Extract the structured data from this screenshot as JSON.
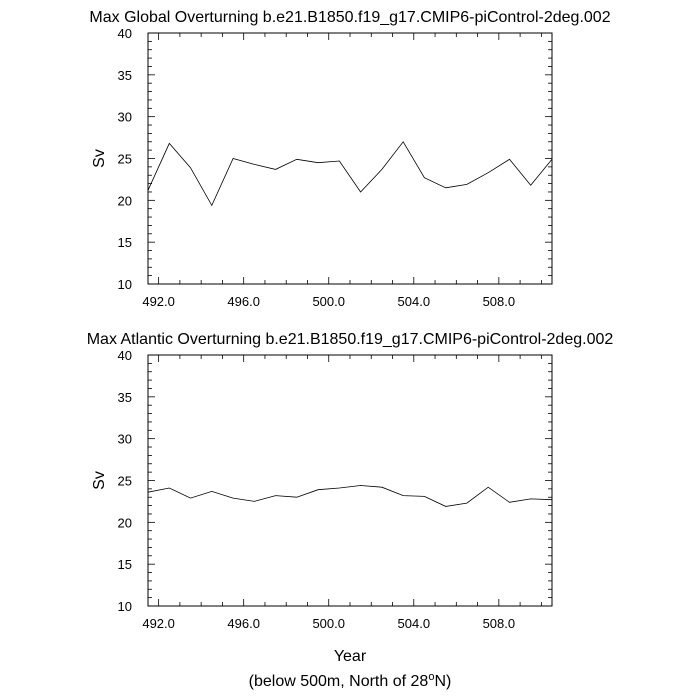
{
  "chart_data": [
    {
      "type": "line",
      "title": "Max Global Overturning b.e21.B1850.f19_g17.CMIP6-piControl-2deg.002",
      "ylabel": "Sv",
      "xlim": [
        491.5,
        510.5
      ],
      "ylim": [
        10,
        40
      ],
      "x_ticks": [
        492,
        496,
        500,
        504,
        508
      ],
      "x_tick_labels": [
        "492.0",
        "496.0",
        "500.0",
        "504.0",
        "508.0"
      ],
      "y_ticks": [
        10,
        15,
        20,
        25,
        30,
        35,
        40
      ],
      "y_tick_labels": [
        "10",
        "15",
        "20",
        "25",
        "30",
        "35",
        "40"
      ],
      "series": [
        {
          "name": "Max Global Overturning",
          "x": [
            491.5,
            492.5,
            493.5,
            494.5,
            495.5,
            496.5,
            497.5,
            498.5,
            499.5,
            500.5,
            501.5,
            502.5,
            503.5,
            504.5,
            505.5,
            506.5,
            507.5,
            508.5,
            509.5,
            510.5
          ],
          "values": [
            21.2,
            26.8,
            23.9,
            19.4,
            25.0,
            24.3,
            23.7,
            24.9,
            24.5,
            24.7,
            21.0,
            23.7,
            27.0,
            22.7,
            21.5,
            21.9,
            23.3,
            24.9,
            21.8,
            24.9
          ]
        }
      ]
    },
    {
      "type": "line",
      "title": "Max Atlantic Overturning b.e21.B1850.f19_g17.CMIP6-piControl-2deg.002",
      "ylabel": "Sv",
      "xlabel": "Year",
      "xlim": [
        491.5,
        510.5
      ],
      "ylim": [
        10,
        40
      ],
      "x_ticks": [
        492,
        496,
        500,
        504,
        508
      ],
      "x_tick_labels": [
        "492.0",
        "496.0",
        "500.0",
        "504.0",
        "508.0"
      ],
      "y_ticks": [
        10,
        15,
        20,
        25,
        30,
        35,
        40
      ],
      "y_tick_labels": [
        "10",
        "15",
        "20",
        "25",
        "30",
        "35",
        "40"
      ],
      "series": [
        {
          "name": "Max Atlantic Overturning",
          "x": [
            491.5,
            492.5,
            493.5,
            494.5,
            495.5,
            496.5,
            497.5,
            498.5,
            499.5,
            500.5,
            501.5,
            502.5,
            503.5,
            504.5,
            505.5,
            506.5,
            507.5,
            508.5,
            509.5,
            510.5
          ],
          "values": [
            23.6,
            24.1,
            22.9,
            23.7,
            22.9,
            22.5,
            23.2,
            23.0,
            23.9,
            24.1,
            24.4,
            24.2,
            23.2,
            23.1,
            21.9,
            22.3,
            24.2,
            22.4,
            22.8,
            22.7
          ]
        }
      ]
    }
  ],
  "footnote": {
    "prefix": "(below 500m, North of 28",
    "degree": "o",
    "suffix": "N)"
  }
}
